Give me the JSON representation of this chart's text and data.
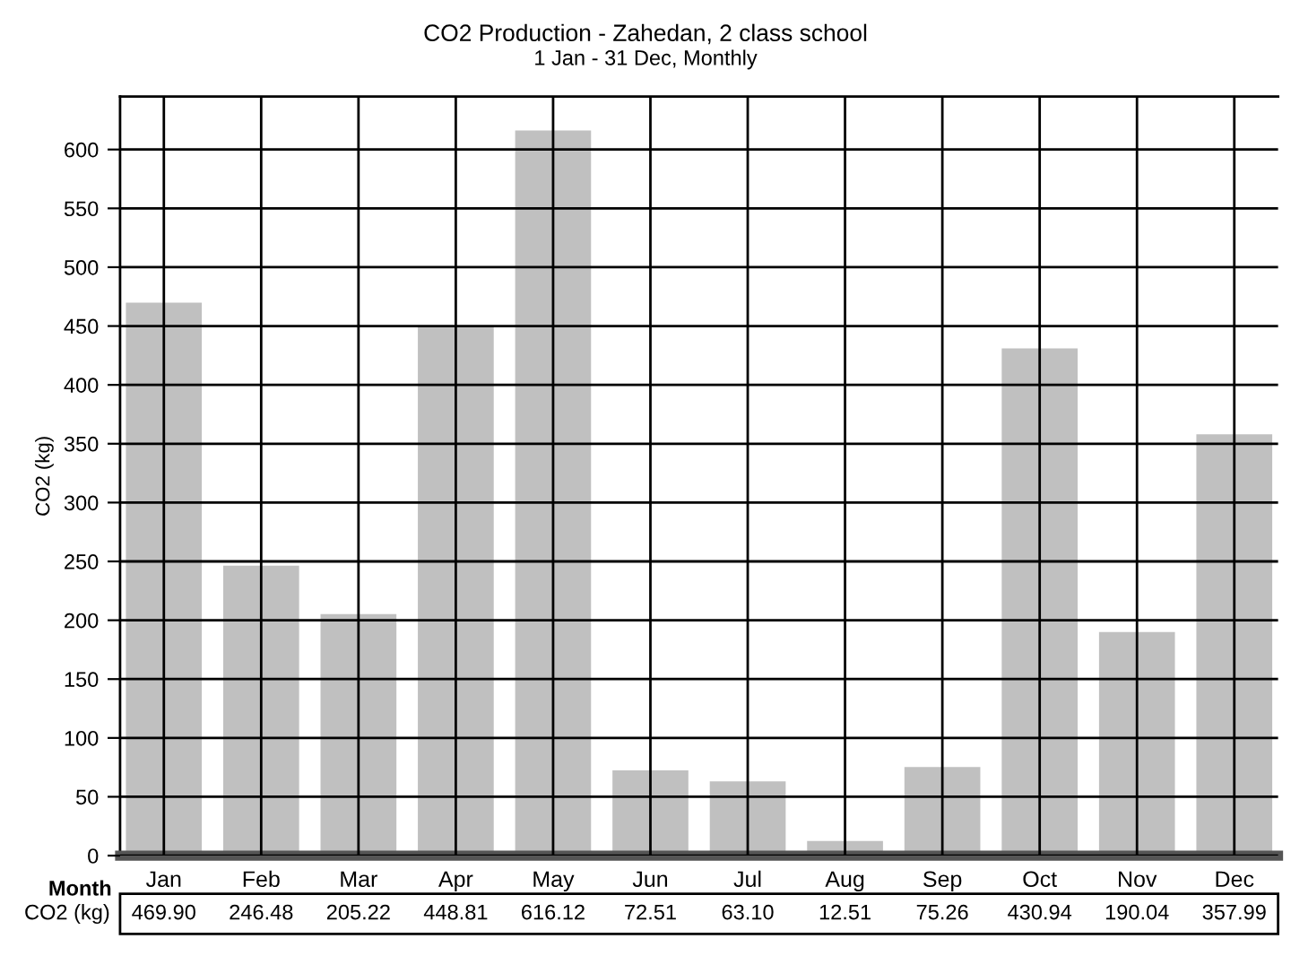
{
  "chart_data": {
    "type": "bar",
    "title": "CO2 Production - Zahedan, 2 class school",
    "subtitle": "1 Jan - 31 Dec, Monthly",
    "xlabel": "Month",
    "ylabel": "CO2 (kg)",
    "categories": [
      "Jan",
      "Feb",
      "Mar",
      "Apr",
      "May",
      "Jun",
      "Jul",
      "Aug",
      "Sep",
      "Oct",
      "Nov",
      "Dec"
    ],
    "values": [
      469.9,
      246.48,
      205.22,
      448.81,
      616.12,
      72.51,
      63.1,
      12.51,
      75.26,
      430.94,
      190.04,
      357.99
    ],
    "value_labels": [
      "469.90",
      "246.48",
      "205.22",
      "448.81",
      "616.12",
      "72.51",
      "63.10",
      "12.51",
      "75.26",
      "430.94",
      "190.04",
      "357.99"
    ],
    "annotations": [
      "CO2 (kg)"
    ],
    "color": "#c0c0c0",
    "ylim": [
      0,
      645
    ],
    "yticks": [
      0,
      50,
      100,
      150,
      200,
      250,
      300,
      350,
      400,
      450,
      500,
      550,
      600
    ],
    "grid": true
  }
}
